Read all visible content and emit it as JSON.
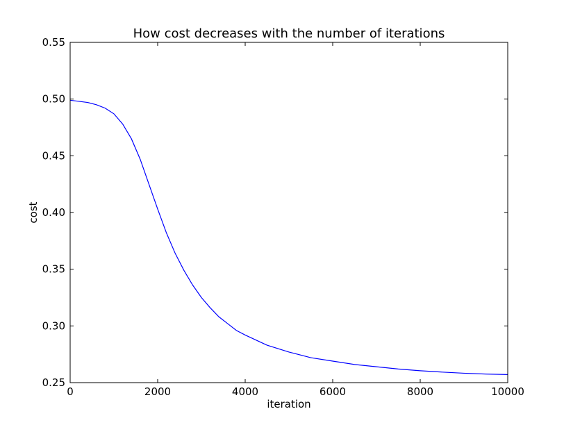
{
  "chart_data": {
    "type": "line",
    "title": "How cost decreases with the number of iterations",
    "xlabel": "iteration",
    "ylabel": "cost",
    "xlim": [
      0,
      10000
    ],
    "ylim": [
      0.25,
      0.55
    ],
    "xticks": [
      0,
      2000,
      4000,
      6000,
      8000,
      10000
    ],
    "xtick_labels": [
      "0",
      "2000",
      "4000",
      "6000",
      "8000",
      "10000"
    ],
    "yticks": [
      0.25,
      0.3,
      0.35,
      0.4,
      0.45,
      0.5,
      0.55
    ],
    "ytick_labels": [
      "0.25",
      "0.30",
      "0.35",
      "0.40",
      "0.45",
      "0.50",
      "0.55"
    ],
    "grid": false,
    "series": [
      {
        "color": "#0000ff",
        "x": [
          0,
          200,
          400,
          600,
          800,
          1000,
          1200,
          1400,
          1600,
          1800,
          2000,
          2200,
          2400,
          2600,
          2800,
          3000,
          3200,
          3400,
          3600,
          3800,
          4000,
          4500,
          5000,
          5500,
          6000,
          6500,
          7000,
          7500,
          8000,
          8500,
          9000,
          9500,
          10000
        ],
        "y": [
          0.499,
          0.498,
          0.497,
          0.495,
          0.492,
          0.487,
          0.478,
          0.465,
          0.447,
          0.425,
          0.403,
          0.382,
          0.364,
          0.349,
          0.336,
          0.325,
          0.316,
          0.308,
          0.302,
          0.296,
          0.292,
          0.283,
          0.277,
          0.272,
          0.269,
          0.266,
          0.264,
          0.262,
          0.2605,
          0.2593,
          0.2583,
          0.2576,
          0.2571
        ]
      }
    ]
  }
}
